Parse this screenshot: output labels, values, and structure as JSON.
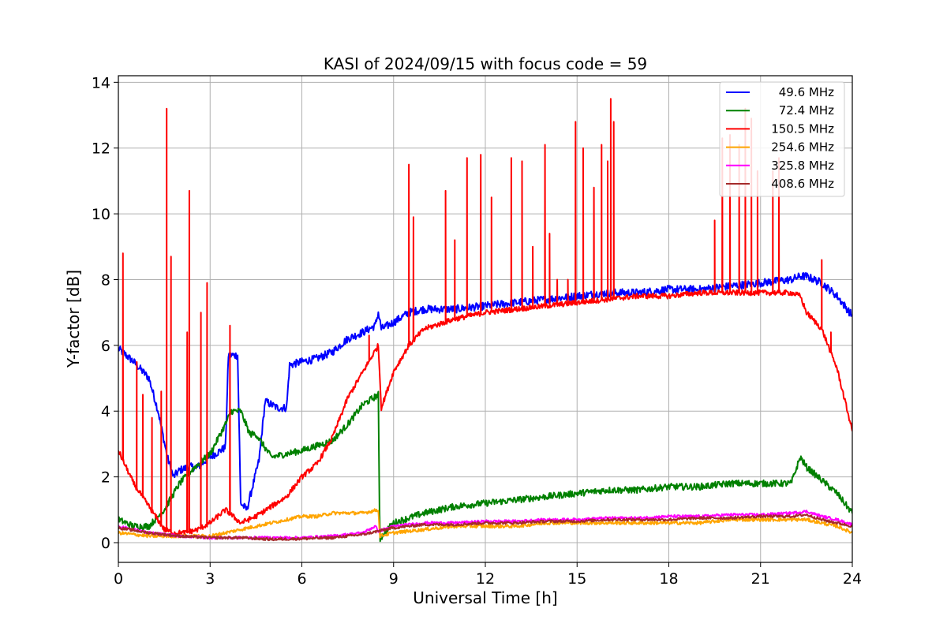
{
  "chart_data": {
    "type": "line",
    "title": "KASI of 2024/09/15 with focus code = 59",
    "xlabel": "Universal Time [h]",
    "ylabel": "Y-factor [dB]",
    "xlim": [
      0,
      24
    ],
    "ylim": [
      -0.6,
      14.2
    ],
    "xticks": [
      0,
      3,
      6,
      9,
      12,
      15,
      18,
      21,
      24
    ],
    "yticks": [
      0,
      2,
      4,
      6,
      8,
      10,
      12,
      14
    ],
    "grid": true,
    "legend_position": "top-right",
    "series": [
      {
        "name": "49.6 MHz",
        "color": "#0000ff",
        "x": [
          0,
          0.5,
          1,
          1.3,
          1.6,
          1.8,
          2,
          2.3,
          2.6,
          3,
          3.5,
          3.6,
          3.9,
          4,
          4.2,
          4.6,
          4.8,
          5.2,
          5.5,
          5.6,
          6,
          6.5,
          7,
          7.5,
          8,
          8.4,
          8.5,
          8.6,
          9,
          9.5,
          10,
          11,
          12,
          13,
          14,
          15,
          16,
          17,
          18,
          19,
          20,
          21,
          22,
          22.3,
          22.5,
          23,
          23.5,
          24
        ],
        "y": [
          5.9,
          5.5,
          5.0,
          4.0,
          2.6,
          2.0,
          2.2,
          2.3,
          2.3,
          2.6,
          2.9,
          5.7,
          5.7,
          1.2,
          1.0,
          2.5,
          4.3,
          4.1,
          4.1,
          5.4,
          5.5,
          5.6,
          5.8,
          6.2,
          6.4,
          6.6,
          7.0,
          6.5,
          6.7,
          7.0,
          7.1,
          7.1,
          7.2,
          7.3,
          7.4,
          7.5,
          7.6,
          7.6,
          7.7,
          7.7,
          7.8,
          7.9,
          8.0,
          8.1,
          8.1,
          7.9,
          7.5,
          6.9
        ]
      },
      {
        "name": "72.4 MHz",
        "color": "#008000",
        "x": [
          0,
          0.5,
          1,
          1.5,
          2,
          2.5,
          3,
          3.5,
          3.7,
          4,
          4.3,
          4.5,
          5,
          5.5,
          6,
          7,
          7.5,
          8,
          8.5,
          8.55,
          8.7,
          9,
          10,
          11,
          12,
          13,
          14,
          15,
          16,
          17,
          18,
          19,
          20,
          21,
          22,
          22.3,
          22.5,
          23,
          23.5,
          24
        ],
        "y": [
          0.7,
          0.5,
          0.5,
          1.0,
          1.8,
          2.3,
          2.7,
          3.6,
          4.0,
          4.0,
          3.3,
          3.3,
          2.6,
          2.7,
          2.8,
          3.1,
          3.6,
          4.2,
          4.5,
          0.1,
          0.3,
          0.6,
          0.9,
          1.1,
          1.2,
          1.3,
          1.4,
          1.5,
          1.6,
          1.6,
          1.7,
          1.7,
          1.8,
          1.8,
          1.8,
          2.6,
          2.3,
          1.9,
          1.5,
          0.9
        ]
      },
      {
        "name": "150.5 MHz",
        "color": "#ff0000",
        "x": [
          0,
          0.5,
          1,
          1.5,
          1.8,
          2.2,
          2.6,
          3,
          3.5,
          4,
          4.5,
          5,
          5.5,
          6,
          6.5,
          7,
          7.5,
          8,
          8.5,
          8.6,
          9,
          9.5,
          10,
          11,
          12,
          13,
          14,
          15,
          16,
          17,
          18,
          19,
          20,
          21,
          22,
          22.3,
          22.5,
          23,
          23.5,
          24
        ],
        "y": [
          2.8,
          1.8,
          1.1,
          0.4,
          0.3,
          0.3,
          0.4,
          0.6,
          1.0,
          0.6,
          0.8,
          1.1,
          1.4,
          2.0,
          2.4,
          3.2,
          4.4,
          5.2,
          6.0,
          4.1,
          5.2,
          6.0,
          6.5,
          6.8,
          7.0,
          7.1,
          7.2,
          7.3,
          7.4,
          7.5,
          7.5,
          7.6,
          7.6,
          7.6,
          7.6,
          7.5,
          7.0,
          6.5,
          5.3,
          3.4
        ],
        "spikes": [
          [
            0.15,
            8.8
          ],
          [
            0.6,
            5.5
          ],
          [
            0.8,
            4.5
          ],
          [
            1.1,
            3.8
          ],
          [
            1.4,
            4.6
          ],
          [
            1.58,
            13.2
          ],
          [
            1.72,
            8.7
          ],
          [
            2.25,
            6.4
          ],
          [
            2.32,
            10.7
          ],
          [
            2.7,
            7.0
          ],
          [
            2.9,
            7.9
          ],
          [
            3.65,
            6.6
          ],
          [
            8.2,
            6.3
          ],
          [
            9.5,
            11.5
          ],
          [
            9.65,
            9.9
          ],
          [
            10.7,
            10.7
          ],
          [
            11.0,
            9.2
          ],
          [
            11.4,
            11.7
          ],
          [
            11.85,
            11.8
          ],
          [
            12.2,
            10.5
          ],
          [
            12.85,
            11.7
          ],
          [
            13.2,
            11.6
          ],
          [
            13.55,
            9.0
          ],
          [
            13.95,
            12.1
          ],
          [
            14.1,
            9.4
          ],
          [
            14.35,
            8.0
          ],
          [
            14.7,
            8.0
          ],
          [
            14.95,
            12.8
          ],
          [
            15.2,
            12.0
          ],
          [
            15.55,
            10.8
          ],
          [
            15.8,
            12.1
          ],
          [
            16.0,
            11.6
          ],
          [
            16.1,
            13.5
          ],
          [
            16.2,
            12.8
          ],
          [
            19.5,
            9.8
          ],
          [
            19.75,
            12.3
          ],
          [
            20.0,
            12.4
          ],
          [
            20.3,
            12.1
          ],
          [
            20.5,
            13.2
          ],
          [
            20.7,
            12.9
          ],
          [
            20.9,
            11.3
          ],
          [
            21.4,
            11.3
          ],
          [
            21.6,
            11.7
          ],
          [
            23.0,
            8.6
          ],
          [
            23.3,
            6.4
          ]
        ]
      },
      {
        "name": "254.6 MHz",
        "color": "#ffa500",
        "x": [
          0,
          1,
          2,
          3,
          4,
          5,
          5.5,
          6,
          6.5,
          7,
          7.5,
          8,
          8.5,
          8.55,
          9,
          10,
          11,
          12,
          13,
          14,
          15,
          16,
          17,
          18,
          19,
          20,
          21,
          22,
          22.5,
          23,
          23.5,
          24
        ],
        "y": [
          0.3,
          0.2,
          0.2,
          0.2,
          0.4,
          0.6,
          0.7,
          0.8,
          0.8,
          0.9,
          0.9,
          0.9,
          1.0,
          0.2,
          0.3,
          0.4,
          0.5,
          0.5,
          0.5,
          0.6,
          0.6,
          0.6,
          0.6,
          0.6,
          0.6,
          0.7,
          0.7,
          0.7,
          0.7,
          0.6,
          0.5,
          0.3
        ]
      },
      {
        "name": "325.8 MHz",
        "color": "#ff00ff",
        "x": [
          0,
          1,
          2,
          3,
          4,
          5,
          6,
          7,
          8,
          8.4,
          8.5,
          9,
          10,
          11,
          12,
          13,
          14,
          15,
          16,
          17,
          18,
          19,
          20,
          21,
          22,
          22.5,
          23,
          23.5,
          24
        ],
        "y": [
          0.5,
          0.3,
          0.2,
          0.15,
          0.15,
          0.15,
          0.15,
          0.2,
          0.3,
          0.5,
          0.35,
          0.5,
          0.6,
          0.6,
          0.65,
          0.65,
          0.7,
          0.7,
          0.75,
          0.75,
          0.8,
          0.8,
          0.85,
          0.85,
          0.9,
          0.95,
          0.8,
          0.7,
          0.55
        ]
      },
      {
        "name": "408.6 MHz",
        "color": "#a52a2a",
        "x": [
          0,
          1,
          2,
          3,
          4,
          5,
          6,
          7,
          8,
          8.5,
          9,
          10,
          11,
          12,
          13,
          14,
          15,
          16,
          17,
          18,
          19,
          20,
          21,
          22,
          22.5,
          23,
          23.5,
          24
        ],
        "y": [
          0.45,
          0.3,
          0.2,
          0.15,
          0.15,
          0.1,
          0.12,
          0.15,
          0.25,
          0.35,
          0.45,
          0.55,
          0.55,
          0.6,
          0.6,
          0.65,
          0.65,
          0.7,
          0.7,
          0.7,
          0.75,
          0.75,
          0.8,
          0.8,
          0.85,
          0.7,
          0.6,
          0.5
        ]
      }
    ]
  }
}
